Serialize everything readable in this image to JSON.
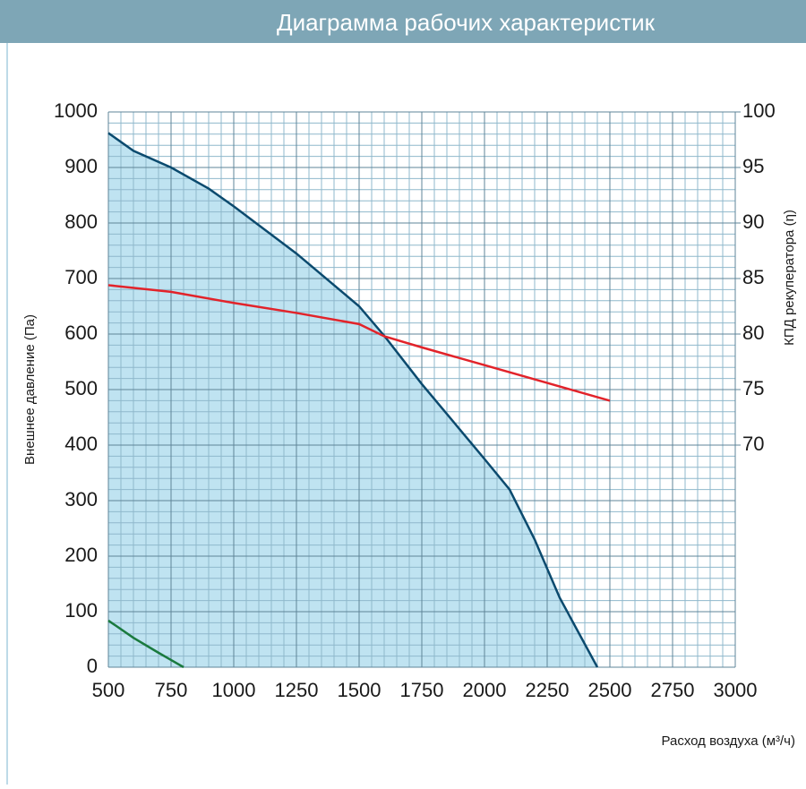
{
  "chart_data": {
    "type": "line",
    "title": "Диаграмма рабочих характеристик",
    "xlabel": "Расход воздуха (м³/ч)",
    "ylabel": "Внешнее давление (Па)",
    "y2label": "КПД рекуператора (η)",
    "xlim": [
      500,
      3000
    ],
    "xticks": [
      500,
      750,
      1000,
      1250,
      1500,
      1750,
      2000,
      2250,
      2500,
      2750,
      3000
    ],
    "ylim": [
      0,
      1000
    ],
    "yticks": [
      0,
      100,
      200,
      300,
      400,
      500,
      600,
      700,
      800,
      900,
      1000
    ],
    "y2lim": [
      50,
      100
    ],
    "y2ticks": [
      70,
      75,
      80,
      85,
      90,
      95,
      100
    ],
    "grid": true,
    "minor_grid": {
      "x": 50,
      "y": 20
    },
    "series": [
      {
        "color": "#0b4a6e",
        "fill": "#bfe3f1",
        "x": [
          500,
          600,
          750,
          900,
          1000,
          1250,
          1500,
          1600,
          1750,
          2000,
          2100,
          2200,
          2300,
          2450
        ],
        "values": [
          962,
          930,
          900,
          862,
          830,
          745,
          650,
          597,
          510,
          375,
          320,
          230,
          125,
          0
        ]
      },
      {
        "color": "#e2232a",
        "axis": "y2",
        "x": [
          500,
          750,
          1000,
          1250,
          1500,
          1600,
          1750,
          2000,
          2250,
          2500
        ],
        "values": [
          84.4,
          83.8,
          82.8,
          81.9,
          80.9,
          79.8,
          78.8,
          77.2,
          75.6,
          74.0
        ]
      },
      {
        "color": "#1a7a3e",
        "x": [
          500,
          600,
          700,
          750,
          800
        ],
        "values": [
          84,
          53,
          26,
          13,
          0
        ]
      }
    ]
  }
}
